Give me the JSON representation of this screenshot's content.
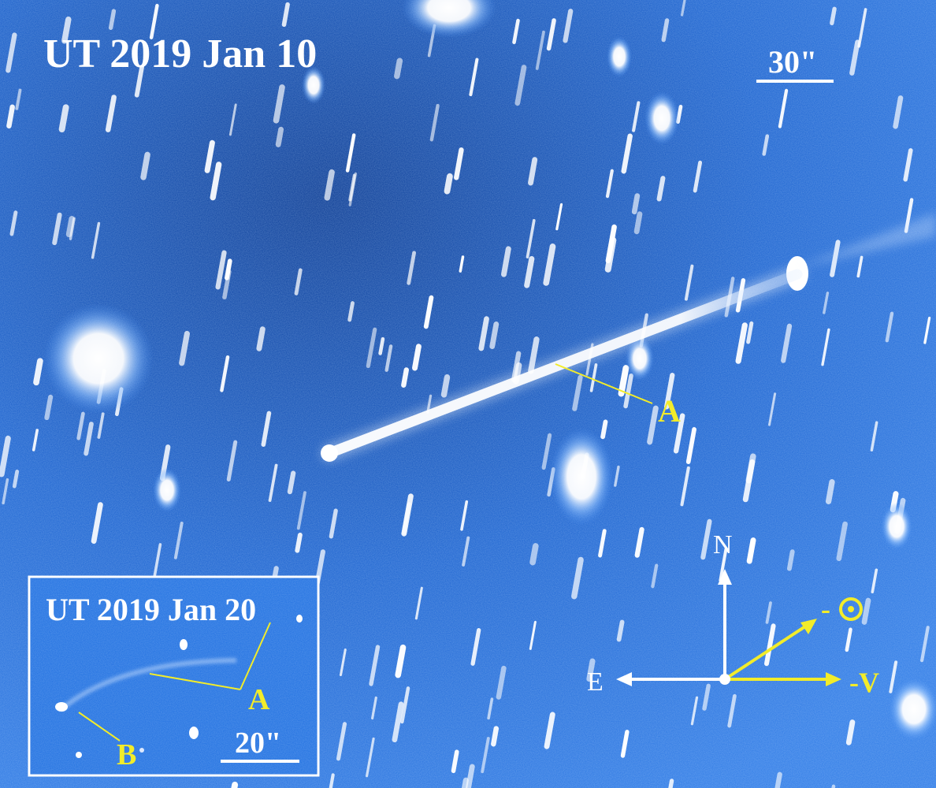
{
  "main_date_label": "UT 2019 Jan 10",
  "main_scale_label": "30\"",
  "main_tail_label": "A",
  "inset": {
    "date_label": "UT 2019 Jan 20",
    "tail_label": "A",
    "nucleus_label": "B",
    "scale_label": "20\""
  },
  "compass": {
    "north_label": "N",
    "east_label": "E",
    "antisolar_prefix": "-",
    "velocity_label": "-V"
  },
  "colors": {
    "sky": "#1f6fe0",
    "sky_dark": "#0b3f9a",
    "star": "#ffffff",
    "annotation": "#f2ec2a",
    "text": "#ffffff"
  }
}
